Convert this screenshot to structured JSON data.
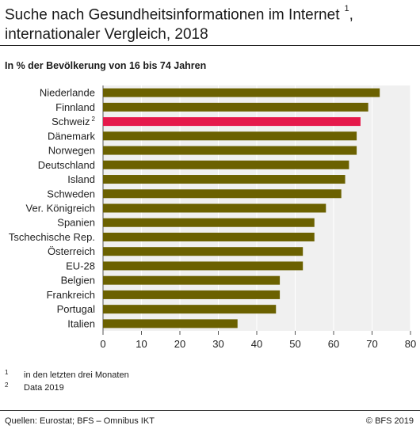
{
  "header": {
    "title_line1": "Suche nach Gesundheitsinformationen im Internet",
    "title_note": "1",
    "title_line2": "internationaler Vergleich, 2018",
    "subtitle": "In % der Bevölkerung von 16 bis 74 Jahren"
  },
  "chart_data": {
    "type": "bar",
    "orientation": "horizontal",
    "title": "Suche nach Gesundheitsinformationen im Internet, internationaler Vergleich, 2018",
    "subtitle": "In % der Bevölkerung von 16 bis 74 Jahren",
    "categories": [
      "Niederlande",
      "Finnland",
      "Schweiz",
      "Dänemark",
      "Norwegen",
      "Deutschland",
      "Island",
      "Schweden",
      "Ver. Königreich",
      "Spanien",
      "Tschechische Rep.",
      "Österreich",
      "EU-28",
      "Belgien",
      "Frankreich",
      "Portugal",
      "Italien"
    ],
    "category_notes": [
      "",
      "",
      "2",
      "",
      "",
      "",
      "",
      "",
      "",
      "",
      "",
      "",
      "",
      "",
      "",
      "",
      ""
    ],
    "values": [
      72,
      69,
      67,
      66,
      66,
      64,
      63,
      62,
      58,
      55,
      55,
      52,
      52,
      46,
      46,
      45,
      35
    ],
    "highlight_category": "Schweiz",
    "xlim": [
      0,
      80
    ],
    "xticks": [
      0,
      10,
      20,
      30,
      40,
      50,
      60,
      70,
      80
    ],
    "grid": true,
    "bar_color": "#6b6100",
    "highlight_color": "#e5194b",
    "plot_background": "#f0f0f0"
  },
  "footnotes": [
    {
      "mark": "1",
      "text": "in den letzten drei Monaten"
    },
    {
      "mark": "2",
      "text": "Data 2019"
    }
  ],
  "footer": {
    "source": "Quellen: Eurostat; BFS – Omnibus IKT",
    "copyright": "© BFS 2019"
  }
}
